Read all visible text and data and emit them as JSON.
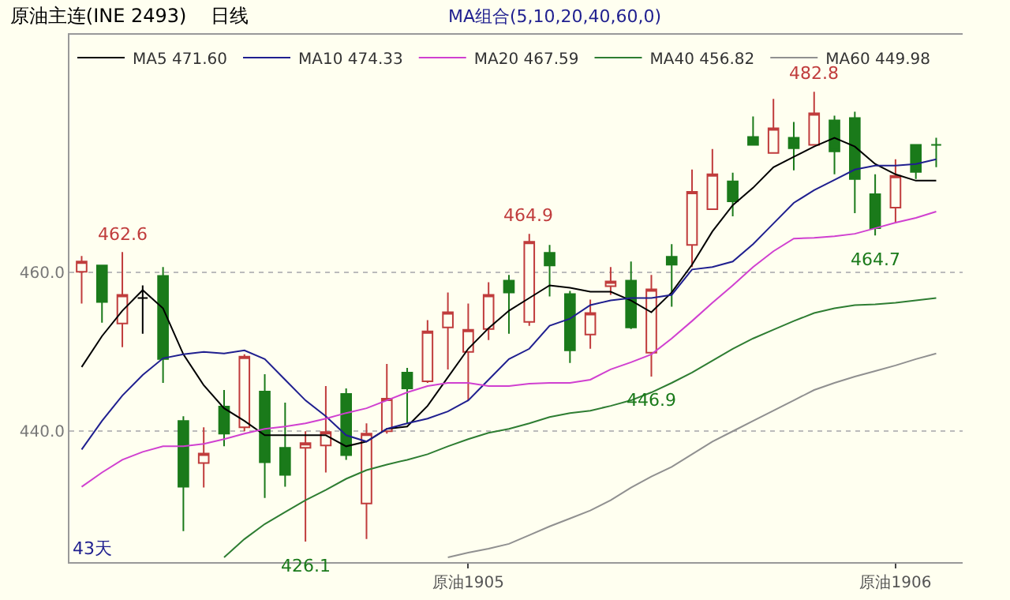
{
  "chart_data": {
    "type": "candlestick",
    "title": "原油主连(INE 2493)",
    "subtitle": "日线",
    "categories": [
      null,
      null,
      null,
      null,
      null,
      null,
      null,
      null,
      null,
      null,
      null,
      null,
      null,
      null,
      null,
      null,
      null,
      null,
      null,
      "原油1905",
      null,
      null,
      null,
      null,
      null,
      null,
      null,
      null,
      null,
      null,
      null,
      null,
      null,
      null,
      null,
      null,
      null,
      null,
      null,
      null,
      "原油1906",
      null,
      null
    ],
    "ohlc": [
      [
        460.1,
        462.1,
        456.1,
        461.4
      ],
      [
        460.9,
        460.9,
        453.7,
        456.3
      ],
      [
        453.6,
        462.6,
        450.6,
        457.2
      ],
      [
        456.8,
        458.4,
        452.3,
        456.8
      ],
      [
        459.6,
        460.7,
        446.1,
        449.1
      ],
      [
        441.3,
        441.9,
        427.4,
        433.0
      ],
      [
        436.0,
        440.5,
        432.9,
        437.2
      ],
      [
        443.1,
        445.2,
        438.1,
        439.7
      ],
      [
        440.5,
        449.7,
        440.0,
        449.4
      ],
      [
        445.0,
        447.2,
        431.6,
        436.1
      ],
      [
        437.9,
        443.6,
        433.0,
        434.5
      ],
      [
        437.9,
        440.0,
        426.1,
        438.5
      ],
      [
        438.2,
        445.7,
        434.8,
        439.9
      ],
      [
        444.7,
        445.4,
        436.4,
        437.0
      ],
      [
        430.9,
        441.0,
        426.4,
        439.7
      ],
      [
        440.0,
        448.5,
        439.7,
        444.1
      ],
      [
        447.4,
        448.0,
        441.0,
        445.4
      ],
      [
        446.3,
        454.0,
        446.1,
        452.6
      ],
      [
        453.1,
        457.5,
        447.8,
        455.0
      ],
      [
        450.0,
        456.1,
        443.9,
        452.8
      ],
      [
        452.9,
        458.8,
        451.5,
        457.2
      ],
      [
        459.0,
        459.7,
        452.3,
        457.5
      ],
      [
        453.8,
        464.9,
        453.3,
        463.9
      ],
      [
        462.5,
        463.5,
        457.0,
        460.9
      ],
      [
        457.3,
        457.7,
        448.6,
        450.2
      ],
      [
        452.2,
        456.6,
        450.4,
        454.9
      ],
      [
        458.3,
        460.7,
        457.2,
        458.9
      ],
      [
        459.0,
        461.4,
        452.9,
        453.1
      ],
      [
        449.9,
        459.7,
        446.9,
        457.9
      ],
      [
        462.0,
        463.6,
        455.7,
        461.0
      ],
      [
        463.5,
        473.0,
        460.7,
        470.2
      ],
      [
        468.0,
        475.6,
        468.0,
        472.4
      ],
      [
        471.5,
        472.6,
        467.1,
        469.0
      ],
      [
        477.1,
        479.7,
        476.1,
        476.1
      ],
      [
        475.1,
        481.9,
        475.1,
        478.2
      ],
      [
        477.0,
        479.0,
        472.9,
        475.7
      ],
      [
        476.1,
        482.8,
        476.1,
        480.1
      ],
      [
        479.2,
        479.8,
        472.4,
        475.3
      ],
      [
        479.5,
        480.3,
        467.5,
        471.8
      ],
      [
        469.9,
        472.4,
        464.7,
        465.6
      ],
      [
        468.2,
        474.3,
        466.2,
        472.2
      ],
      [
        476.1,
        476.1,
        471.8,
        472.7
      ],
      [
        476.1,
        477.0,
        473.3,
        476.1
      ]
    ],
    "colors": [
      "#c03c3c",
      "#1a7a1a",
      "#c03c3c",
      "#000000",
      "#1a7a1a",
      "#1a7a1a",
      "#c03c3c",
      "#1a7a1a",
      "#c03c3c",
      "#1a7a1a",
      "#1a7a1a",
      "#c03c3c",
      "#c03c3c",
      "#1a7a1a",
      "#c03c3c",
      "#c03c3c",
      "#1a7a1a",
      "#c03c3c",
      "#c03c3c",
      "#c03c3c",
      "#c03c3c",
      "#1a7a1a",
      "#c03c3c",
      "#1a7a1a",
      "#1a7a1a",
      "#c03c3c",
      "#c03c3c",
      "#1a7a1a",
      "#c03c3c",
      "#1a7a1a",
      "#c03c3c",
      "#c03c3c",
      "#1a7a1a",
      "#1a7a1a",
      "#c03c3c",
      "#1a7a1a",
      "#c03c3c",
      "#1a7a1a",
      "#1a7a1a",
      "#1a7a1a",
      "#c03c3c",
      "#1a7a1a",
      "#1a7a1a"
    ],
    "series": [
      {
        "type": "line",
        "name": "MA5 471.60",
        "color": "#000000",
        "values": [
          448.1,
          452.0,
          455.2,
          457.8,
          455.5,
          449.7,
          445.8,
          442.9,
          441.3,
          439.5,
          439.5,
          439.5,
          439.5,
          438.1,
          438.7,
          440.3,
          440.6,
          443.2,
          446.8,
          450.4,
          453.0,
          455.2,
          456.8,
          458.4,
          458.1,
          457.6,
          457.6,
          456.5,
          455.0,
          457.5,
          461.0,
          465.2,
          468.5,
          470.7,
          473.3,
          474.6,
          475.9,
          477.0,
          475.9,
          473.7,
          472.4,
          471.6,
          471.6
        ]
      },
      {
        "type": "line",
        "name": "MA10 474.33",
        "color": "#1f1f8f",
        "values": [
          437.7,
          441.3,
          444.5,
          447.1,
          449.2,
          449.7,
          450.0,
          449.8,
          450.2,
          449.1,
          446.5,
          443.9,
          441.9,
          439.5,
          438.7,
          440.3,
          441.0,
          441.6,
          442.5,
          443.9,
          446.5,
          449.1,
          450.4,
          453.3,
          454.2,
          455.9,
          456.5,
          456.8,
          456.8,
          457.2,
          460.4,
          460.7,
          461.4,
          463.6,
          466.2,
          468.8,
          470.4,
          471.7,
          473.0,
          473.5,
          473.5,
          473.7,
          474.3
        ]
      },
      {
        "type": "line",
        "name": "MA20 467.59",
        "color": "#d040d0",
        "values": [
          433.0,
          434.8,
          436.4,
          437.4,
          438.1,
          438.1,
          438.4,
          439.0,
          439.7,
          440.3,
          440.6,
          441.0,
          441.6,
          442.3,
          442.9,
          443.9,
          444.9,
          445.7,
          446.1,
          446.1,
          445.7,
          445.7,
          446.0,
          446.1,
          446.1,
          446.5,
          447.8,
          448.7,
          449.7,
          451.7,
          453.9,
          456.2,
          458.4,
          460.7,
          462.7,
          464.3,
          464.4,
          464.6,
          464.9,
          465.6,
          466.3,
          466.9,
          467.7
        ]
      },
      {
        "type": "line",
        "name": "MA40 456.82",
        "color": "#2e7d32",
        "values": [
          null,
          null,
          null,
          null,
          null,
          null,
          null,
          424.1,
          426.4,
          428.3,
          429.8,
          431.3,
          432.6,
          434.0,
          435.1,
          435.8,
          436.4,
          437.1,
          438.1,
          439.0,
          439.8,
          440.3,
          441.0,
          441.8,
          442.3,
          442.6,
          443.2,
          443.9,
          444.9,
          446.1,
          447.4,
          448.9,
          450.4,
          451.7,
          452.8,
          453.9,
          454.9,
          455.5,
          455.9,
          456.0,
          456.2,
          456.5,
          456.8
        ]
      },
      {
        "type": "line",
        "name": "MA60 449.98",
        "color": "#909090",
        "values": [
          null,
          null,
          null,
          null,
          null,
          null,
          null,
          null,
          null,
          null,
          null,
          null,
          null,
          null,
          null,
          null,
          null,
          null,
          424.1,
          424.7,
          425.2,
          425.8,
          426.9,
          428.0,
          429.0,
          430.0,
          431.3,
          432.9,
          434.3,
          435.5,
          437.1,
          438.7,
          440.0,
          441.3,
          442.6,
          443.9,
          445.2,
          446.1,
          446.9,
          447.6,
          448.3,
          449.1,
          449.8
        ]
      }
    ],
    "ylim": [
      423.5,
      490
    ],
    "yticks": [
      {
        "value": 440,
        "label": "440.0"
      },
      {
        "value": 460,
        "label": "460.0"
      }
    ],
    "grid": "y",
    "legend": "top left",
    "line_style": "solid",
    "marker": "none",
    "annotations": [
      "MA组合(5,10,20,40,60,0)",
      "43天",
      {
        "text": "462.6",
        "y": 462.6
      },
      {
        "text": "464.9",
        "y": 464.9
      },
      {
        "text": "482.8",
        "y": 482.8
      },
      {
        "text": "426.1",
        "y": 426.1
      },
      {
        "text": "446.9",
        "y": 446.9
      },
      {
        "text": "464.7",
        "y": 464.7
      }
    ]
  }
}
